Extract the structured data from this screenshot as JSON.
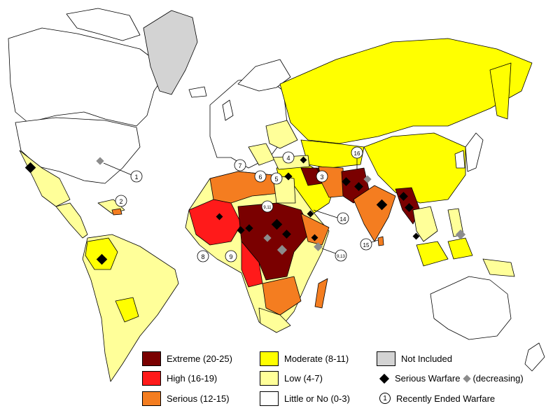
{
  "colors": {
    "extreme": "#7a0000",
    "high": "#ff1a1a",
    "serious": "#f47d20",
    "moderate": "#ffff00",
    "low": "#ffff99",
    "little_or_no": "#ffffff",
    "not_included": "#d3d3d3",
    "warfare": "#000000",
    "warfare_decreasing": "#8c8c8c"
  },
  "legend": {
    "extreme": "Extreme (20-25)",
    "high": "High (16-19)",
    "serious": "Serious (12-15)",
    "moderate": "Moderate (8-11)",
    "low": "Low (4-7)",
    "little_or_no": "Little or No (0-3)",
    "not_included": "Not Included",
    "serious_warfare": "Serious Warfare",
    "decreasing": "(decreasing)",
    "recently_ended": "Recently Ended Warfare",
    "recently_ended_symbol": "1"
  },
  "ended_markers": [
    "1",
    "2",
    "3",
    "4",
    "5",
    "6",
    "7",
    "8",
    "9",
    "14",
    "15",
    "16",
    "9,11",
    "9,13"
  ]
}
